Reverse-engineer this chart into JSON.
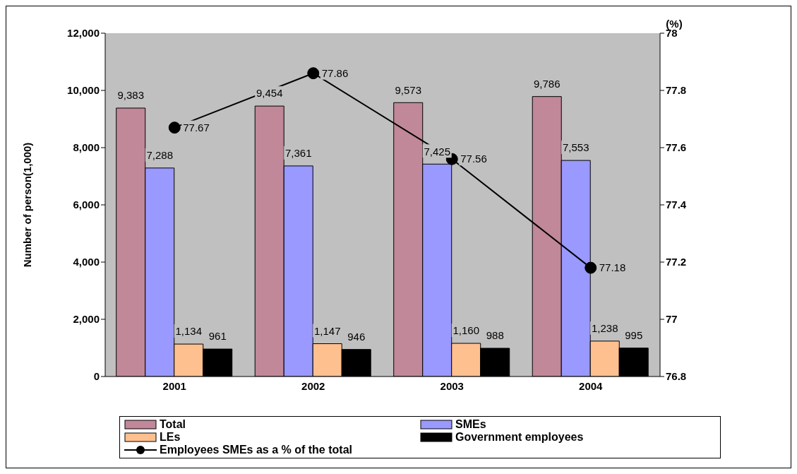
{
  "chart_data": {
    "type": "bar",
    "categories": [
      "2001",
      "2002",
      "2003",
      "2004"
    ],
    "ylabel": "Number of person(1,000)",
    "y2label": "(%)",
    "series": [
      {
        "name": "Total",
        "color": "#c08898",
        "values": [
          9383,
          9454,
          9573,
          9786
        ],
        "value_labels": [
          "9,383",
          "9,454",
          "9,573",
          "9,786"
        ]
      },
      {
        "name": "SMEs",
        "color": "#9999ff",
        "values": [
          7288,
          7361,
          7425,
          7553
        ],
        "value_labels": [
          "7,288",
          "7,361",
          "7,425",
          "7,553"
        ]
      },
      {
        "name": "LEs",
        "color": "#ffc090",
        "values": [
          1134,
          1147,
          1160,
          1238
        ],
        "value_labels": [
          "1,134",
          "1,147",
          "1,160",
          "1,238"
        ]
      },
      {
        "name": "Government employees",
        "color": "#000000",
        "values": [
          961,
          946,
          988,
          995
        ],
        "value_labels": [
          "961",
          "946",
          "988",
          "995"
        ]
      },
      {
        "name": "Employees SMEs as a % of the total",
        "type": "line",
        "axis": "y2",
        "color": "#000000",
        "values": [
          77.67,
          77.86,
          77.56,
          77.18
        ],
        "value_labels": [
          "77.67",
          "77.86",
          "77.56",
          "77.18"
        ]
      }
    ],
    "ylim": [
      0,
      12000
    ],
    "yticks": [
      {
        "value": 0,
        "label": "0"
      },
      {
        "value": 2000,
        "label": "2,000"
      },
      {
        "value": 4000,
        "label": "4,000"
      },
      {
        "value": 6000,
        "label": "6,000"
      },
      {
        "value": 8000,
        "label": "8,000"
      },
      {
        "value": 10000,
        "label": "10,000"
      },
      {
        "value": 12000,
        "label": "12,000"
      }
    ],
    "y2lim": [
      76.8,
      78
    ],
    "y2ticks": [
      76.8,
      77,
      77.2,
      77.4,
      77.6,
      77.8,
      78
    ],
    "marker": "circle",
    "legend": "bottom",
    "grid": false
  }
}
